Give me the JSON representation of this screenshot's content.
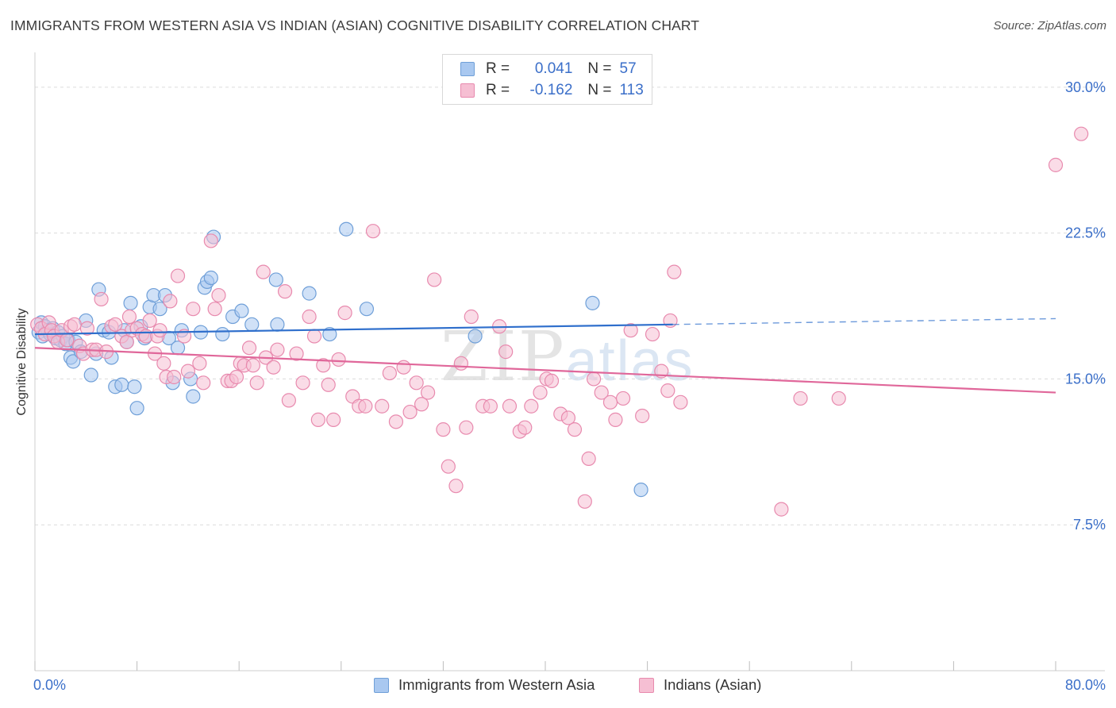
{
  "header": {
    "title": "IMMIGRANTS FROM WESTERN ASIA VS INDIAN (ASIAN) COGNITIVE DISABILITY CORRELATION CHART",
    "source": "Source: ZipAtlas.com"
  },
  "watermark": {
    "zip": "ZIP",
    "atlas": "atlas"
  },
  "legend": {
    "rows": [
      {
        "r_label": "R =",
        "r_value": "0.041",
        "n_label": "N =",
        "n_value": "57"
      },
      {
        "r_label": "R =",
        "r_value": "-0.162",
        "n_label": "N =",
        "n_value": "113"
      }
    ]
  },
  "colors": {
    "blue_fill": "#a9c8f0",
    "blue_stroke": "#6f9fd8",
    "blue_line": "#2f6fcc",
    "pink_fill": "#f6bfd3",
    "pink_stroke": "#e88aae",
    "pink_line": "#e0679a",
    "tick_text": "#3b6fc9",
    "grid": "#dcdcdc"
  },
  "chart_data": {
    "type": "scatter",
    "title": "IMMIGRANTS FROM WESTERN ASIA VS INDIAN (ASIAN) COGNITIVE DISABILITY CORRELATION CHART",
    "xlabel": "",
    "ylabel": "Cognitive Disability",
    "xlim": [
      0,
      80
    ],
    "ylim": [
      0,
      31.3
    ],
    "x_tick_labels": [
      {
        "value": 0,
        "label": "0.0%"
      },
      {
        "value": 80,
        "label": "80.0%"
      }
    ],
    "y_tick_labels": [
      {
        "value": 7.5,
        "label": "7.5%"
      },
      {
        "value": 15.0,
        "label": "15.0%"
      },
      {
        "value": 22.5,
        "label": "22.5%"
      },
      {
        "value": 30.0,
        "label": "30.0%"
      }
    ],
    "grid": true,
    "legend_position": "top-center",
    "series": [
      {
        "name": "Immigrants from Western Asia",
        "color": "#a9c8f0",
        "trend": {
          "x": [
            0,
            50
          ],
          "y": [
            17.3,
            17.8
          ],
          "dashed_to": [
            80,
            18.1
          ]
        },
        "points": [
          [
            0.3,
            17.4
          ],
          [
            0.5,
            17.9
          ],
          [
            0.6,
            17.2
          ],
          [
            0.8,
            17.7
          ],
          [
            1.0,
            17.5
          ],
          [
            1.2,
            17.3
          ],
          [
            1.4,
            17.6
          ],
          [
            1.6,
            17.1
          ],
          [
            1.8,
            17.4
          ],
          [
            2.0,
            17.0
          ],
          [
            2.2,
            17.2
          ],
          [
            2.4,
            16.8
          ],
          [
            2.6,
            17.0
          ],
          [
            2.8,
            16.1
          ],
          [
            3.0,
            15.9
          ],
          [
            3.2,
            16.9
          ],
          [
            3.6,
            16.4
          ],
          [
            4.0,
            18.0
          ],
          [
            4.4,
            15.2
          ],
          [
            4.8,
            16.3
          ],
          [
            5.0,
            19.6
          ],
          [
            5.4,
            17.5
          ],
          [
            5.8,
            17.4
          ],
          [
            6.0,
            16.1
          ],
          [
            6.3,
            14.6
          ],
          [
            6.8,
            14.7
          ],
          [
            7.0,
            17.5
          ],
          [
            7.2,
            16.9
          ],
          [
            7.5,
            18.9
          ],
          [
            7.8,
            14.6
          ],
          [
            8.0,
            13.5
          ],
          [
            8.3,
            17.7
          ],
          [
            8.6,
            17.1
          ],
          [
            9.0,
            18.7
          ],
          [
            9.3,
            19.3
          ],
          [
            9.8,
            18.6
          ],
          [
            10.2,
            19.3
          ],
          [
            10.5,
            17.1
          ],
          [
            10.8,
            14.8
          ],
          [
            11.2,
            16.6
          ],
          [
            11.5,
            17.5
          ],
          [
            12.2,
            15.0
          ],
          [
            12.4,
            14.1
          ],
          [
            13.0,
            17.4
          ],
          [
            13.3,
            19.7
          ],
          [
            13.5,
            20.0
          ],
          [
            13.8,
            20.2
          ],
          [
            14.0,
            22.3
          ],
          [
            14.7,
            17.3
          ],
          [
            15.5,
            18.2
          ],
          [
            16.2,
            18.5
          ],
          [
            17.0,
            17.8
          ],
          [
            18.9,
            20.1
          ],
          [
            19.0,
            17.8
          ],
          [
            21.5,
            19.4
          ],
          [
            23.1,
            17.3
          ],
          [
            24.4,
            22.7
          ],
          [
            26.0,
            18.6
          ],
          [
            34.5,
            17.2
          ],
          [
            43.7,
            18.9
          ],
          [
            47.5,
            9.3
          ]
        ]
      },
      {
        "name": "Indians (Asian)",
        "color": "#f6bfd3",
        "trend": {
          "x": [
            0,
            80
          ],
          "y": [
            16.6,
            14.3
          ]
        },
        "points": [
          [
            0.2,
            17.8
          ],
          [
            0.5,
            17.6
          ],
          [
            0.8,
            17.3
          ],
          [
            1.1,
            17.9
          ],
          [
            1.3,
            17.5
          ],
          [
            1.5,
            17.2
          ],
          [
            1.8,
            16.9
          ],
          [
            2.1,
            17.5
          ],
          [
            2.5,
            17.0
          ],
          [
            2.8,
            17.7
          ],
          [
            3.1,
            17.8
          ],
          [
            3.5,
            16.7
          ],
          [
            3.8,
            16.3
          ],
          [
            4.1,
            17.6
          ],
          [
            4.5,
            16.5
          ],
          [
            4.8,
            16.5
          ],
          [
            5.2,
            19.1
          ],
          [
            5.6,
            16.4
          ],
          [
            6.0,
            17.7
          ],
          [
            6.3,
            17.8
          ],
          [
            6.8,
            17.2
          ],
          [
            7.2,
            16.9
          ],
          [
            7.4,
            18.2
          ],
          [
            7.6,
            17.5
          ],
          [
            8.0,
            17.6
          ],
          [
            8.4,
            17.3
          ],
          [
            8.7,
            17.2
          ],
          [
            9.0,
            18.0
          ],
          [
            9.4,
            16.3
          ],
          [
            9.6,
            17.2
          ],
          [
            9.8,
            17.5
          ],
          [
            10.1,
            15.8
          ],
          [
            10.3,
            15.1
          ],
          [
            10.6,
            19.0
          ],
          [
            10.9,
            15.1
          ],
          [
            11.2,
            20.3
          ],
          [
            11.7,
            17.2
          ],
          [
            12.0,
            15.4
          ],
          [
            12.4,
            18.6
          ],
          [
            12.9,
            15.8
          ],
          [
            13.2,
            14.8
          ],
          [
            13.8,
            22.1
          ],
          [
            14.1,
            18.6
          ],
          [
            14.4,
            19.3
          ],
          [
            15.1,
            14.9
          ],
          [
            15.4,
            14.9
          ],
          [
            15.8,
            15.1
          ],
          [
            16.1,
            15.8
          ],
          [
            16.4,
            15.7
          ],
          [
            16.8,
            16.6
          ],
          [
            17.1,
            15.7
          ],
          [
            17.4,
            14.8
          ],
          [
            17.9,
            20.5
          ],
          [
            18.1,
            16.1
          ],
          [
            18.7,
            15.6
          ],
          [
            19.0,
            16.5
          ],
          [
            19.6,
            19.5
          ],
          [
            19.9,
            13.9
          ],
          [
            20.5,
            16.3
          ],
          [
            21.0,
            14.8
          ],
          [
            21.5,
            18.2
          ],
          [
            21.9,
            17.2
          ],
          [
            22.2,
            12.9
          ],
          [
            22.6,
            15.7
          ],
          [
            23.0,
            14.7
          ],
          [
            23.4,
            12.9
          ],
          [
            23.8,
            16.0
          ],
          [
            24.3,
            18.4
          ],
          [
            24.9,
            14.1
          ],
          [
            25.4,
            13.6
          ],
          [
            25.9,
            13.6
          ],
          [
            26.5,
            22.6
          ],
          [
            27.2,
            13.6
          ],
          [
            27.8,
            15.3
          ],
          [
            28.3,
            12.8
          ],
          [
            28.9,
            15.6
          ],
          [
            29.4,
            13.3
          ],
          [
            29.9,
            14.8
          ],
          [
            30.3,
            13.7
          ],
          [
            30.8,
            14.3
          ],
          [
            31.3,
            20.1
          ],
          [
            32.0,
            12.4
          ],
          [
            32.4,
            10.5
          ],
          [
            33.0,
            9.5
          ],
          [
            33.4,
            15.8
          ],
          [
            33.8,
            12.5
          ],
          [
            34.2,
            18.2
          ],
          [
            35.1,
            13.6
          ],
          [
            35.7,
            13.6
          ],
          [
            36.4,
            17.7
          ],
          [
            36.9,
            16.4
          ],
          [
            37.2,
            13.6
          ],
          [
            38.0,
            12.3
          ],
          [
            38.4,
            12.5
          ],
          [
            38.9,
            13.6
          ],
          [
            39.6,
            14.3
          ],
          [
            40.1,
            15.0
          ],
          [
            40.5,
            14.9
          ],
          [
            41.2,
            13.2
          ],
          [
            41.8,
            13.0
          ],
          [
            42.3,
            12.4
          ],
          [
            43.1,
            8.7
          ],
          [
            43.4,
            10.9
          ],
          [
            43.8,
            15.0
          ],
          [
            44.4,
            14.3
          ],
          [
            45.1,
            13.8
          ],
          [
            45.5,
            12.9
          ],
          [
            46.1,
            14.0
          ],
          [
            46.7,
            17.5
          ],
          [
            47.6,
            13.1
          ],
          [
            48.4,
            17.3
          ],
          [
            49.1,
            15.4
          ],
          [
            49.6,
            14.4
          ],
          [
            50.6,
            13.8
          ],
          [
            49.8,
            18.0
          ],
          [
            50.1,
            20.5
          ],
          [
            58.5,
            8.3
          ],
          [
            60.0,
            14.0
          ],
          [
            63.0,
            14.0
          ],
          [
            80.0,
            26.0
          ],
          [
            82.0,
            27.6
          ]
        ]
      }
    ]
  },
  "bottom_legend": {
    "items": [
      {
        "label": "Immigrants from Western Asia"
      },
      {
        "label": "Indians (Asian)"
      }
    ]
  }
}
